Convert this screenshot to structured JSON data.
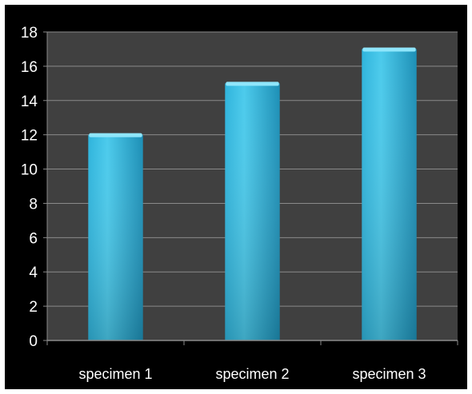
{
  "chart_data": {
    "type": "bar",
    "categories": [
      "specimen 1",
      "specimen 2",
      "specimen 3"
    ],
    "values": [
      12,
      15,
      17
    ],
    "title": "",
    "xlabel": "",
    "ylabel": "",
    "ylim": [
      0,
      18
    ],
    "yticks": [
      "0",
      "2",
      "4",
      "6",
      "8",
      "10",
      "12",
      "14",
      "16",
      "18"
    ],
    "grid": true,
    "legend": "none",
    "colors": {
      "figure_background": "#000000",
      "plot_background": "#404040",
      "gridline": "#8a8a8a",
      "bar_light": "#4ccbec",
      "bar_mid": "#2fb4dc",
      "bar_dark": "#1d8fb6",
      "bar_top": "#8fe6fb",
      "axis_text": "#ffffff"
    }
  }
}
